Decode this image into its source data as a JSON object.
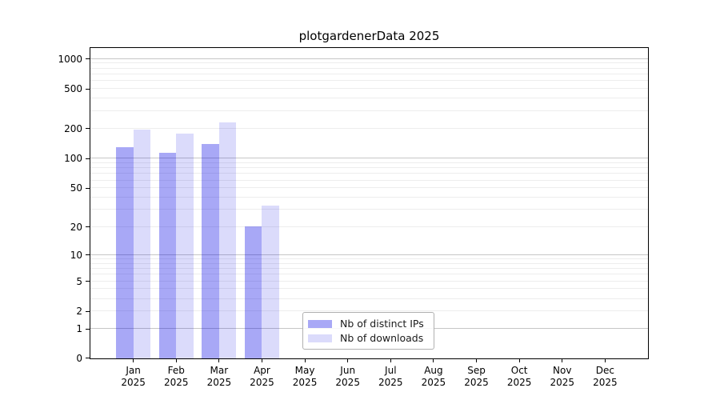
{
  "title": "plotgardenerData 2025",
  "legend": {
    "items": [
      {
        "label": "Nb of distinct IPs",
        "color": "rgba(0,0,230,0.34)"
      },
      {
        "label": "Nb of downloads",
        "color": "rgba(0,0,230,0.14)"
      }
    ]
  },
  "colors": {
    "axis": "#000000",
    "gridline_major": "#c6c6c6",
    "gridline_minor": "#ededed",
    "background": "#ffffff"
  },
  "chart_data": {
    "type": "bar",
    "title": "plotgardenerData 2025",
    "xlabel": "",
    "ylabel": "",
    "year": "2025",
    "months": [
      "Jan",
      "Feb",
      "Mar",
      "Apr",
      "May",
      "Jun",
      "Jul",
      "Aug",
      "Sep",
      "Oct",
      "Nov",
      "Dec"
    ],
    "categories": [
      "Jan 2025",
      "Feb 2025",
      "Mar 2025",
      "Apr 2025",
      "May 2025",
      "Jun 2025",
      "Jul 2025",
      "Aug 2025",
      "Sep 2025",
      "Oct 2025",
      "Nov 2025",
      "Dec 2025"
    ],
    "series": [
      {
        "name": "Nb of distinct IPs",
        "color": "rgba(0,0,230,0.34)",
        "values": [
          130,
          114,
          140,
          20,
          null,
          null,
          null,
          null,
          null,
          null,
          null,
          null
        ]
      },
      {
        "name": "Nb of downloads",
        "color": "rgba(0,0,230,0.14)",
        "values": [
          195,
          177,
          228,
          33,
          null,
          null,
          null,
          null,
          null,
          null,
          null,
          null
        ]
      }
    ],
    "yscale": "log1p",
    "yticks": [
      0,
      1,
      2,
      5,
      10,
      20,
      50,
      100,
      200,
      500,
      1000
    ],
    "ylim": [
      0,
      1270
    ],
    "grid": "horizontal",
    "gridlines": {
      "major": [
        1,
        10,
        100,
        1000
      ],
      "minor": [
        2,
        3,
        4,
        5,
        6,
        7,
        8,
        9,
        20,
        30,
        40,
        50,
        60,
        70,
        80,
        90,
        200,
        300,
        400,
        500,
        600,
        700,
        800,
        900
      ]
    },
    "legend_position": "lower-center"
  }
}
